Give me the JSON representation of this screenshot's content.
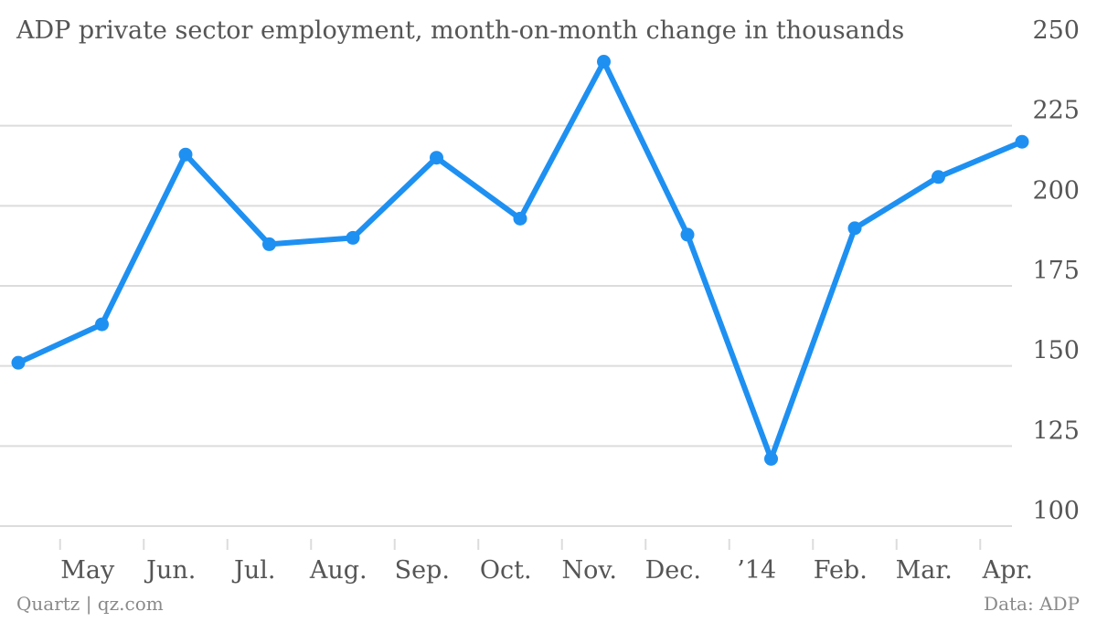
{
  "chart_data": {
    "type": "line",
    "title": "ADP private sector employment, month-on-month change in thousands",
    "xlabel": "",
    "ylabel": "",
    "y_axis_position": "right",
    "ylim": [
      100,
      250
    ],
    "yticks": [
      100,
      125,
      150,
      175,
      200,
      225,
      250
    ],
    "x_tick_labels": [
      "May",
      "Jun.",
      "Jul.",
      "Aug.",
      "Sep.",
      "Oct.",
      "Nov.",
      "Dec.",
      "’14",
      "Feb.",
      "Mar.",
      "Apr."
    ],
    "grid": true,
    "legend": "none",
    "series": [
      {
        "color": "#1e90f2",
        "points": [
          {
            "x": "2013-04",
            "y": 151
          },
          {
            "x": "2013-05",
            "y": 163
          },
          {
            "x": "2013-06",
            "y": 216
          },
          {
            "x": "2013-07",
            "y": 188
          },
          {
            "x": "2013-08",
            "y": 190
          },
          {
            "x": "2013-09",
            "y": 215
          },
          {
            "x": "2013-10",
            "y": 196
          },
          {
            "x": "2013-11",
            "y": 245
          },
          {
            "x": "2013-12",
            "y": 191
          },
          {
            "x": "2014-01",
            "y": 121
          },
          {
            "x": "2014-02",
            "y": 193
          },
          {
            "x": "2014-03",
            "y": 209
          },
          {
            "x": "2014-04",
            "y": 220
          }
        ]
      }
    ]
  },
  "footer": {
    "source_left": "Quartz | qz.com",
    "source_right": "Data: ADP"
  }
}
